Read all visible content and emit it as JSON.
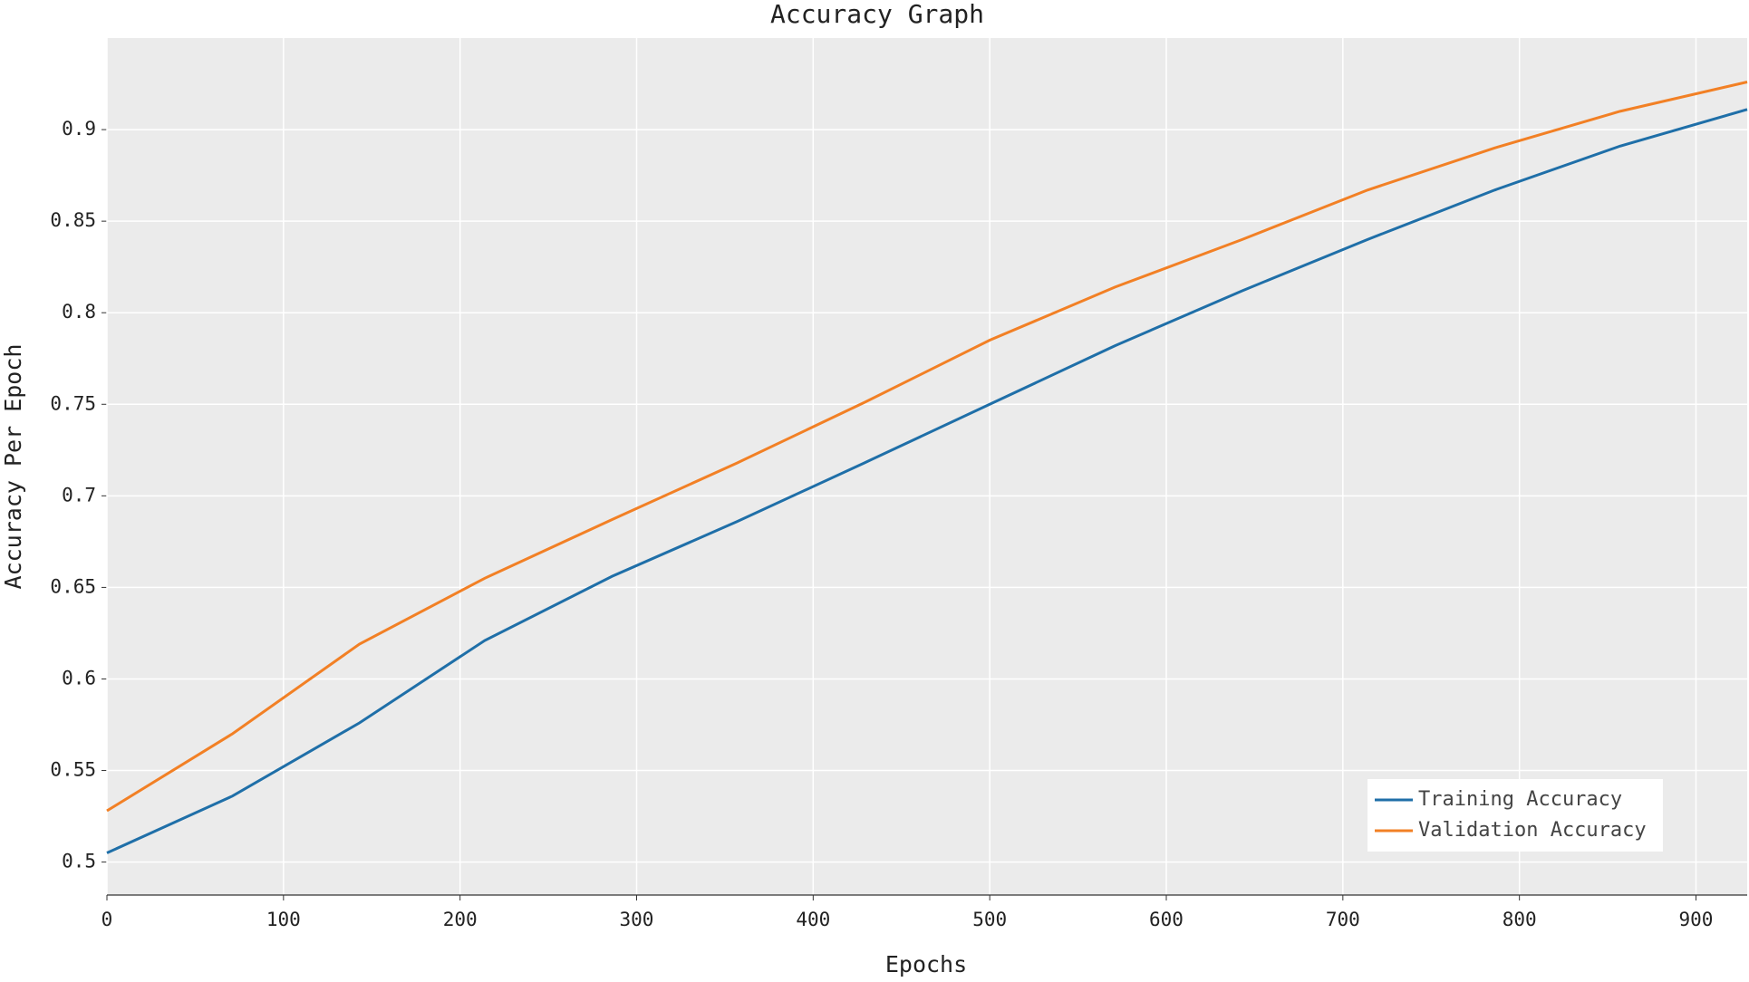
{
  "chart_data": {
    "type": "line",
    "title": "Accuracy Graph",
    "x_label": "Epochs",
    "y_label": "Accuracy Per Epoch",
    "x": [
      0,
      71,
      143,
      214,
      286,
      357,
      429,
      500,
      571,
      643,
      714,
      786,
      857,
      929
    ],
    "series": [
      {
        "name": "Training Accuracy",
        "color": "#1f6fa8",
        "values": [
          0.505,
          0.536,
          0.576,
          0.621,
          0.656,
          0.686,
          0.718,
          0.75,
          0.782,
          0.812,
          0.84,
          0.867,
          0.891,
          0.911
        ]
      },
      {
        "name": "Validation Accuracy",
        "color": "#f28025",
        "values": [
          0.528,
          0.57,
          0.619,
          0.655,
          0.687,
          0.718,
          0.751,
          0.785,
          0.814,
          0.84,
          0.867,
          0.89,
          0.91,
          0.926
        ]
      }
    ],
    "xlim": [
      0,
      929
    ],
    "ylim": [
      0.482,
      0.95
    ],
    "xticks": [
      0,
      100,
      200,
      300,
      400,
      500,
      600,
      700,
      800,
      900
    ],
    "yticks": [
      0.5,
      0.55,
      0.6,
      0.65,
      0.7,
      0.75,
      0.8,
      0.85,
      0.9
    ],
    "grid": true,
    "legend": "lower right"
  }
}
